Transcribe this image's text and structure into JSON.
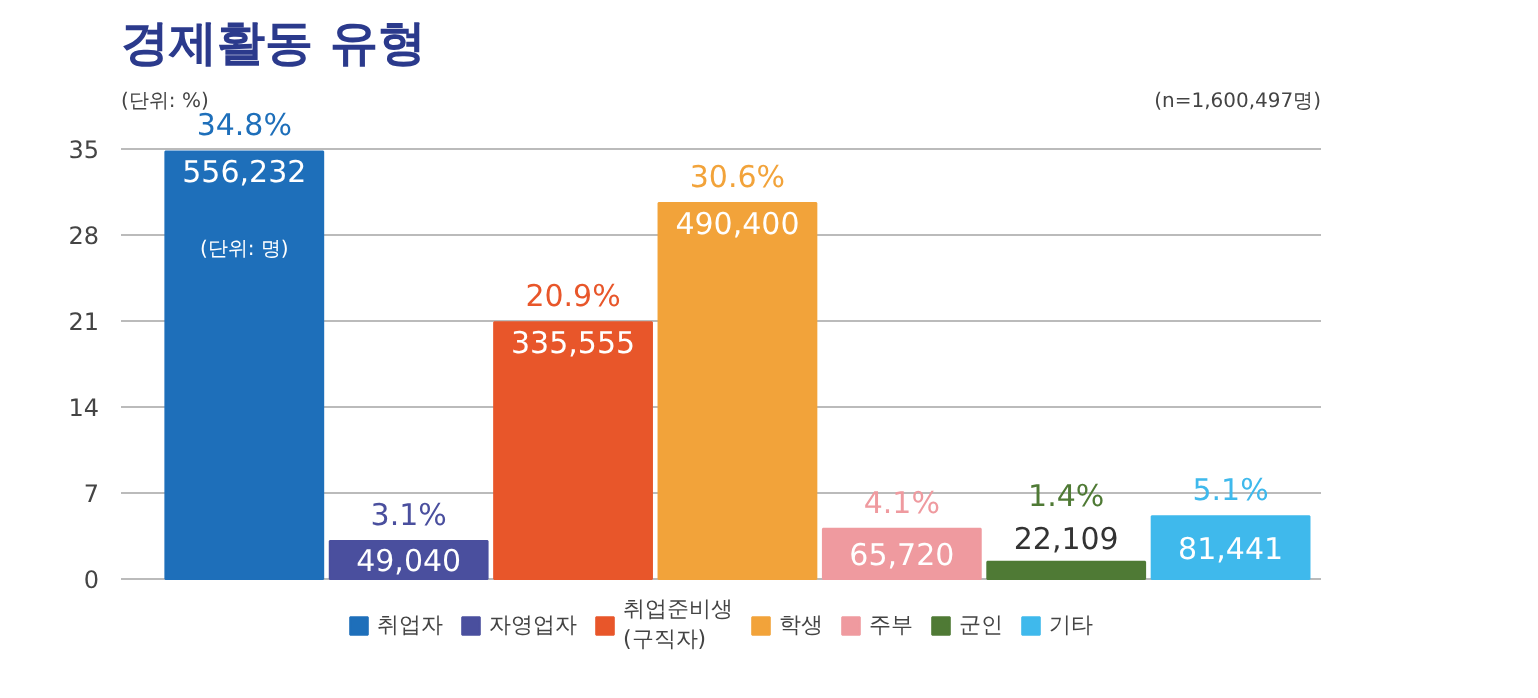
{
  "chart_data": {
    "type": "bar",
    "title": "경제활동 유형",
    "categories": [
      null,
      null,
      null,
      null,
      null,
      null,
      null
    ],
    "series": [
      {
        "name": "취업자",
        "color": "#1e6fba",
        "values": [
          34.8,
          null,
          null,
          null,
          null,
          null,
          null
        ],
        "value_labels": [
          "34.8%",
          null,
          null,
          null,
          null,
          null,
          null
        ]
      },
      {
        "name": "자영업자",
        "color": "#4a4f9e",
        "values": [
          null,
          3.1,
          null,
          null,
          null,
          null,
          null
        ],
        "value_labels": [
          null,
          "3.1%",
          null,
          null,
          null,
          null,
          null
        ]
      },
      {
        "name": "취업준비생\n(구직자)",
        "color": "#e8562a",
        "values": [
          null,
          null,
          20.9,
          null,
          null,
          null,
          null
        ],
        "value_labels": [
          null,
          null,
          "20.9%",
          null,
          null,
          null,
          null
        ]
      },
      {
        "name": "학생",
        "color": "#f2a33a",
        "values": [
          null,
          null,
          null,
          30.6,
          null,
          null,
          null
        ],
        "value_labels": [
          null,
          null,
          null,
          "30.6%",
          null,
          null,
          null
        ]
      },
      {
        "name": "주부",
        "color": "#ef9a9f",
        "values": [
          null,
          null,
          null,
          null,
          4.1,
          null,
          null
        ],
        "value_labels": [
          null,
          null,
          null,
          null,
          "4.1%",
          null,
          null
        ]
      },
      {
        "name": "군인",
        "color": "#4f7a35",
        "values": [
          null,
          null,
          null,
          null,
          null,
          1.4,
          null
        ],
        "value_labels": [
          null,
          null,
          null,
          null,
          null,
          "1.4%",
          null
        ]
      },
      {
        "name": "기타",
        "color": "#3fb9ec",
        "values": [
          null,
          null,
          null,
          null,
          null,
          null,
          5.1
        ],
        "value_labels": [
          null,
          null,
          null,
          null,
          null,
          null,
          "5.1%"
        ]
      }
    ],
    "ylim": [
      0,
      35
    ],
    "yticks": [
      0,
      7,
      14,
      21,
      28,
      35
    ],
    "grid": "y",
    "legend": "bottom",
    "tick_labels": "y",
    "annotations": [
      "(단위: %)",
      "(n=1,600,497명)",
      "556,232",
      "(단위: 명)",
      "49,040",
      "335,555",
      "490,400",
      "65,720",
      "22,109",
      "81,441"
    ]
  }
}
